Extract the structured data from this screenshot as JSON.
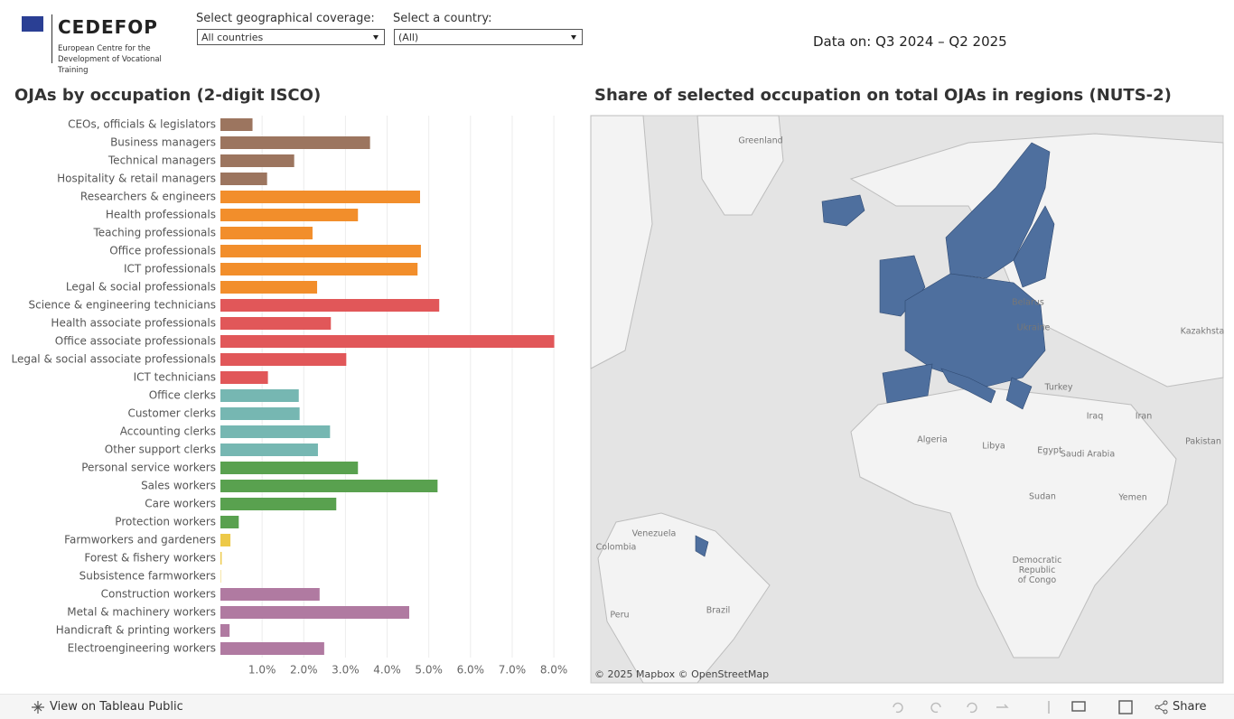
{
  "header": {
    "logo": "CEDEFOP",
    "logo_subtitle": "European Centre for the Development of Vocational Training",
    "filters": [
      {
        "label": "Select geographical coverage:",
        "value": "All countries"
      },
      {
        "label": "Select a country:",
        "value": "(All)"
      }
    ],
    "data_period": "Data on: Q3 2024 – Q2 2025"
  },
  "chart_data": {
    "type": "bar",
    "orientation": "horizontal",
    "title": "OJAs by occupation (2-digit ISCO)",
    "categories": [
      "CEOs, officials & legislators",
      "Business managers",
      "Technical managers",
      "Hospitality & retail managers",
      "Researchers & engineers",
      "Health professionals",
      "Teaching professionals",
      "Office professionals",
      "ICT professionals",
      "Legal & social professionals",
      "Science & engineering technicians",
      "Health associate professionals",
      "Office associate professionals",
      "Legal & social associate professionals",
      "ICT technicians",
      "Office clerks",
      "Customer clerks",
      "Accounting clerks",
      "Other support clerks",
      "Personal service workers",
      "Sales workers",
      "Care workers",
      "Protection workers",
      "Farmworkers and gardeners",
      "Forest & fishery workers",
      "Subsistence farmworkers",
      "Construction workers",
      "Metal & machinery workers",
      "Handicraft & printing workers",
      "Electroengineering workers"
    ],
    "values": [
      0.77,
      3.59,
      1.77,
      1.12,
      4.79,
      3.3,
      2.21,
      4.81,
      4.73,
      2.32,
      5.25,
      2.65,
      8.01,
      3.02,
      1.14,
      1.88,
      1.9,
      2.63,
      2.34,
      3.3,
      5.21,
      2.78,
      0.44,
      0.24,
      0.03,
      0.01,
      2.38,
      4.53,
      0.22,
      2.49
    ],
    "colors": [
      "#9c755f",
      "#9c755f",
      "#9c755f",
      "#9c755f",
      "#f28e2b",
      "#f28e2b",
      "#f28e2b",
      "#f28e2b",
      "#f28e2b",
      "#f28e2b",
      "#e15759",
      "#e15759",
      "#e15759",
      "#e15759",
      "#e15759",
      "#76b7b2",
      "#76b7b2",
      "#76b7b2",
      "#76b7b2",
      "#59a14f",
      "#59a14f",
      "#59a14f",
      "#59a14f",
      "#edc948",
      "#edc948",
      "#edc948",
      "#b07aa1",
      "#b07aa1",
      "#b07aa1",
      "#b07aa1"
    ],
    "xlim": [
      0,
      8.8
    ],
    "xticks": [
      {
        "value": 1,
        "label": "1.0%"
      },
      {
        "value": 2,
        "label": "2.0%"
      },
      {
        "value": 3,
        "label": "3.0%"
      },
      {
        "value": 4,
        "label": "4.0%"
      },
      {
        "value": 5,
        "label": "5.0%"
      },
      {
        "value": 6,
        "label": "6.0%"
      },
      {
        "value": 7,
        "label": "7.0%"
      },
      {
        "value": 8,
        "label": "8.0%"
      }
    ],
    "grid": true
  },
  "map": {
    "title": "Share of selected occupation on total OJAs in regions (NUTS-2)",
    "labels": [
      "Greenland",
      "Belarus",
      "Ukraine",
      "Kazakhstan",
      "Turkey",
      "Iraq",
      "Iran",
      "Algeria",
      "Libya",
      "Egypt",
      "Saudi Arabia",
      "Pakistan",
      "Sudan",
      "Yemen",
      "Venezuela",
      "Colombia",
      "Peru",
      "Brazil",
      "Democratic Republic of Congo"
    ],
    "attribution": "© 2025 Mapbox  © OpenStreetMap"
  },
  "footer": {
    "tableau_link": "View on Tableau Public",
    "share": "Share"
  }
}
